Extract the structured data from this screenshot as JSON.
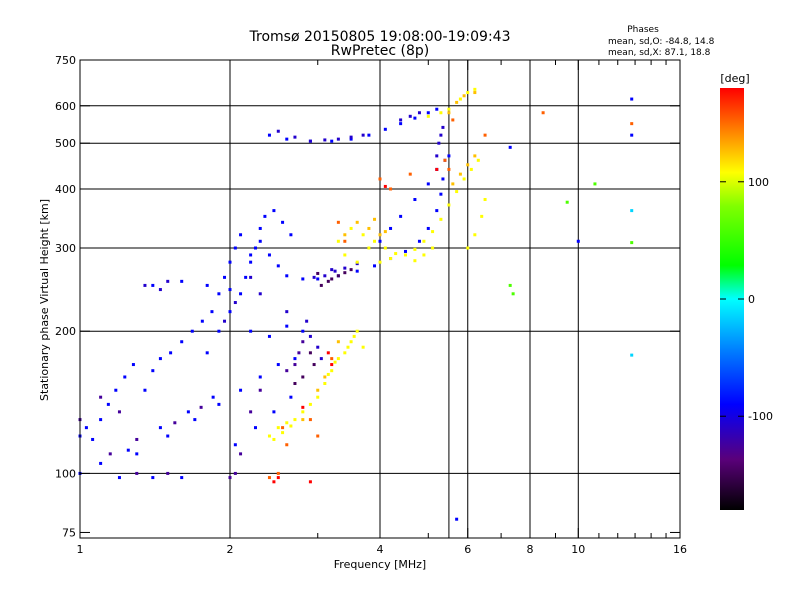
{
  "chart_data": {
    "type": "scatter",
    "title": "Tromsø 20150805 19:08:00-19:09:43",
    "subtitle": "RwPretec (8p)",
    "xlabel": "Frequency [MHz]",
    "ylabel": "Stationary phase Virtual Height [km]",
    "xscale": "log",
    "yscale": "log",
    "xlim": [
      1,
      16
    ],
    "ylim": [
      73,
      750
    ],
    "x_ticks": [
      1,
      2,
      4,
      6,
      8,
      10,
      16
    ],
    "x_tick_labels": [
      "1",
      "2",
      "4",
      "6",
      "8",
      "10",
      "16"
    ],
    "x_minor_ticks": [
      3,
      5,
      7,
      9,
      11,
      12,
      13,
      14,
      15
    ],
    "y_ticks": [
      75,
      100,
      200,
      300,
      400,
      500,
      600,
      750
    ],
    "y_tick_labels": [
      "75",
      "100",
      "200",
      "300",
      "400",
      "500",
      "600",
      "750"
    ],
    "grid": true,
    "grid_x": [
      2,
      4,
      5.5,
      6,
      8,
      10
    ],
    "grid_y": [
      100,
      200,
      300,
      400,
      500,
      600
    ],
    "stats": {
      "heading": "Phases",
      "line1": "mean, sd,O: -84.8, 14.8",
      "line2": "mean, sd,X:  87.1, 18.8"
    },
    "colorbar": {
      "label": "[deg]",
      "range": [
        -180,
        180
      ],
      "ticks": [
        100,
        0,
        -100
      ],
      "tick_labels": [
        "100",
        "0",
        "-100"
      ]
    },
    "series": [
      {
        "phase": -100,
        "points": [
          [
            1.0,
            120
          ],
          [
            1.03,
            125
          ],
          [
            1.06,
            118
          ],
          [
            1.1,
            130
          ],
          [
            1.14,
            140
          ],
          [
            1.18,
            150
          ],
          [
            1.23,
            160
          ],
          [
            1.28,
            170
          ],
          [
            1.35,
            150
          ],
          [
            1.4,
            165
          ],
          [
            1.45,
            175
          ],
          [
            1.52,
            180
          ],
          [
            1.6,
            190
          ],
          [
            1.68,
            200
          ],
          [
            1.76,
            210
          ],
          [
            1.84,
            220
          ],
          [
            1.9,
            240
          ],
          [
            1.95,
            260
          ],
          [
            2.0,
            280
          ],
          [
            2.05,
            300
          ],
          [
            2.1,
            320
          ],
          [
            2.2,
            290
          ],
          [
            2.3,
            310
          ],
          [
            2.4,
            290
          ],
          [
            2.5,
            275
          ],
          [
            2.6,
            262
          ],
          [
            2.8,
            258
          ],
          [
            3.0,
            258
          ],
          [
            3.3,
            262
          ],
          [
            3.6,
            268
          ],
          [
            3.9,
            275
          ],
          [
            4.2,
            285
          ],
          [
            4.5,
            295
          ],
          [
            4.8,
            310
          ],
          [
            5.0,
            330
          ],
          [
            5.2,
            360
          ],
          [
            5.3,
            390
          ],
          [
            5.35,
            420
          ],
          [
            5.4,
            460
          ],
          [
            2.4,
            520
          ],
          [
            2.6,
            510
          ],
          [
            2.9,
            505
          ],
          [
            3.2,
            505
          ],
          [
            3.5,
            510
          ],
          [
            3.8,
            520
          ],
          [
            4.1,
            535
          ],
          [
            4.4,
            550
          ],
          [
            4.7,
            565
          ],
          [
            5.0,
            580
          ],
          [
            5.2,
            590
          ],
          [
            1.0,
            100
          ],
          [
            1.2,
            98
          ],
          [
            1.4,
            98
          ],
          [
            1.6,
            98
          ],
          [
            1.4,
            250
          ],
          [
            1.6,
            255
          ],
          [
            1.8,
            250
          ],
          [
            2.0,
            245
          ],
          [
            2.2,
            200
          ],
          [
            2.4,
            195
          ],
          [
            2.6,
            205
          ],
          [
            2.8,
            200
          ],
          [
            1.3,
            110
          ],
          [
            1.5,
            120
          ],
          [
            1.7,
            130
          ],
          [
            1.9,
            140
          ],
          [
            2.1,
            150
          ],
          [
            2.3,
            160
          ],
          [
            2.5,
            170
          ],
          [
            2.7,
            175
          ],
          [
            1.1,
            105
          ],
          [
            1.25,
            112
          ],
          [
            1.45,
            125
          ],
          [
            1.65,
            135
          ],
          [
            1.85,
            145
          ],
          [
            2.05,
            115
          ],
          [
            2.25,
            125
          ],
          [
            2.45,
            135
          ],
          [
            2.65,
            145
          ],
          [
            1.8,
            180
          ],
          [
            1.9,
            200
          ],
          [
            2.0,
            220
          ],
          [
            2.1,
            240
          ],
          [
            2.15,
            260
          ],
          [
            2.2,
            280
          ],
          [
            2.25,
            300
          ],
          [
            2.3,
            330
          ],
          [
            2.35,
            350
          ],
          [
            2.45,
            360
          ],
          [
            2.55,
            340
          ],
          [
            2.65,
            320
          ],
          [
            5.5,
            470
          ],
          [
            5.2,
            440
          ],
          [
            5.0,
            410
          ],
          [
            4.7,
            380
          ],
          [
            4.4,
            350
          ],
          [
            4.2,
            330
          ],
          [
            4.0,
            310
          ],
          [
            5.7,
            80
          ],
          [
            12.8,
            620
          ],
          [
            12.8,
            520
          ],
          [
            10.0,
            310
          ],
          [
            7.3,
            490
          ]
        ]
      },
      {
        "phase": -115,
        "points": [
          [
            2.95,
            260
          ],
          [
            3.1,
            262
          ],
          [
            3.25,
            268
          ],
          [
            3.4,
            272
          ],
          [
            3.6,
            278
          ],
          [
            3.2,
            270
          ],
          [
            2.9,
            195
          ],
          [
            3.0,
            185
          ],
          [
            3.05,
            175
          ],
          [
            2.85,
            210
          ],
          [
            2.6,
            220
          ],
          [
            1.5,
            255
          ],
          [
            1.35,
            250
          ],
          [
            1.45,
            245
          ],
          [
            2.9,
            505
          ],
          [
            3.1,
            508
          ],
          [
            3.3,
            510
          ],
          [
            3.5,
            515
          ],
          [
            3.7,
            520
          ],
          [
            5.2,
            470
          ],
          [
            5.25,
            500
          ],
          [
            5.3,
            520
          ],
          [
            5.35,
            540
          ],
          [
            4.8,
            580
          ],
          [
            4.6,
            570
          ],
          [
            4.4,
            560
          ],
          [
            2.5,
            530
          ],
          [
            2.7,
            515
          ],
          [
            2.2,
            260
          ],
          [
            2.3,
            240
          ],
          [
            2.05,
            230
          ],
          [
            1.95,
            210
          ]
        ]
      },
      {
        "phase": -130,
        "points": [
          [
            2.7,
            170
          ],
          [
            2.75,
            180
          ],
          [
            2.8,
            190
          ],
          [
            2.6,
            165
          ],
          [
            1.15,
            110
          ],
          [
            1.3,
            118
          ],
          [
            1.55,
            128
          ],
          [
            1.75,
            138
          ],
          [
            2.0,
            98
          ],
          [
            2.05,
            100
          ],
          [
            2.1,
            110
          ],
          [
            2.2,
            135
          ],
          [
            2.3,
            150
          ],
          [
            1.2,
            135
          ],
          [
            1.1,
            145
          ],
          [
            1.0,
            130
          ],
          [
            1.3,
            100
          ],
          [
            1.5,
            100
          ]
        ]
      },
      {
        "phase": -150,
        "points": [
          [
            3.2,
            258
          ],
          [
            3.3,
            262
          ],
          [
            3.4,
            266
          ],
          [
            3.5,
            270
          ],
          [
            3.0,
            265
          ],
          [
            2.9,
            180
          ],
          [
            2.95,
            170
          ],
          [
            2.8,
            160
          ],
          [
            2.7,
            155
          ],
          [
            3.05,
            250
          ],
          [
            3.15,
            255
          ]
        ]
      },
      {
        "phase": 100,
        "points": [
          [
            3.5,
            330
          ],
          [
            3.7,
            320
          ],
          [
            3.9,
            310
          ],
          [
            4.1,
            300
          ],
          [
            4.3,
            292
          ],
          [
            4.5,
            290
          ],
          [
            4.7,
            298
          ],
          [
            4.9,
            310
          ],
          [
            5.1,
            325
          ],
          [
            5.3,
            345
          ],
          [
            5.5,
            370
          ],
          [
            5.7,
            395
          ],
          [
            5.9,
            420
          ],
          [
            6.1,
            440
          ],
          [
            6.3,
            460
          ],
          [
            3.3,
            310
          ],
          [
            3.4,
            290
          ],
          [
            3.6,
            280
          ],
          [
            3.8,
            300
          ],
          [
            4.0,
            280
          ],
          [
            4.2,
            285
          ],
          [
            3.6,
            200
          ],
          [
            3.5,
            190
          ],
          [
            3.4,
            180
          ],
          [
            3.3,
            175
          ],
          [
            3.7,
            185
          ],
          [
            3.2,
            165
          ],
          [
            3.1,
            155
          ],
          [
            3.0,
            145
          ],
          [
            2.9,
            140
          ],
          [
            2.8,
            135
          ],
          [
            2.7,
            130
          ],
          [
            2.6,
            128
          ],
          [
            2.5,
            125
          ],
          [
            2.4,
            120
          ],
          [
            5.0,
            570
          ],
          [
            5.3,
            580
          ],
          [
            5.5,
            590
          ],
          [
            5.8,
            620
          ],
          [
            6.0,
            640
          ],
          [
            6.2,
            650
          ],
          [
            5.1,
            300
          ],
          [
            4.9,
            290
          ],
          [
            4.7,
            282
          ],
          [
            6.0,
            300
          ],
          [
            6.2,
            320
          ],
          [
            6.4,
            350
          ],
          [
            6.5,
            380
          ],
          [
            2.45,
            118
          ],
          [
            2.55,
            122
          ],
          [
            2.65,
            126
          ],
          [
            3.15,
            162
          ],
          [
            3.25,
            172
          ],
          [
            3.45,
            185
          ],
          [
            3.55,
            195
          ]
        ]
      },
      {
        "phase": 120,
        "points": [
          [
            3.4,
            320
          ],
          [
            3.6,
            340
          ],
          [
            3.8,
            330
          ],
          [
            4.0,
            320
          ],
          [
            5.6,
            410
          ],
          [
            5.8,
            430
          ],
          [
            6.0,
            450
          ],
          [
            6.2,
            470
          ],
          [
            3.0,
            150
          ],
          [
            3.1,
            160
          ],
          [
            2.8,
            130
          ],
          [
            3.3,
            190
          ],
          [
            6.2,
            640
          ],
          [
            5.7,
            610
          ],
          [
            5.9,
            630
          ],
          [
            5.5,
            580
          ],
          [
            3.9,
            345
          ],
          [
            4.1,
            325
          ]
        ]
      },
      {
        "phase": 150,
        "points": [
          [
            2.6,
            115
          ],
          [
            2.5,
            100
          ],
          [
            2.4,
            98
          ],
          [
            2.55,
            125
          ],
          [
            3.3,
            340
          ],
          [
            3.4,
            310
          ],
          [
            4.2,
            400
          ],
          [
            4.0,
            420
          ],
          [
            5.6,
            560
          ],
          [
            5.5,
            440
          ],
          [
            6.5,
            520
          ],
          [
            8.5,
            580
          ],
          [
            12.8,
            550
          ],
          [
            3.2,
            175
          ],
          [
            3.0,
            120
          ],
          [
            2.9,
            130
          ],
          [
            5.4,
            460
          ],
          [
            4.6,
            430
          ]
        ]
      },
      {
        "phase": 180,
        "points": [
          [
            2.5,
            98
          ],
          [
            2.45,
            96
          ],
          [
            2.9,
            96
          ],
          [
            3.2,
            170
          ],
          [
            3.15,
            180
          ],
          [
            2.8,
            138
          ],
          [
            5.2,
            440
          ],
          [
            4.1,
            405
          ]
        ]
      },
      {
        "phase": 60,
        "points": [
          [
            7.3,
            250
          ],
          [
            7.4,
            240
          ],
          [
            9.5,
            375
          ],
          [
            10.8,
            410
          ],
          [
            12.8,
            308
          ]
        ]
      },
      {
        "phase": -20,
        "points": [
          [
            12.8,
            360
          ],
          [
            12.8,
            178
          ]
        ]
      }
    ]
  }
}
